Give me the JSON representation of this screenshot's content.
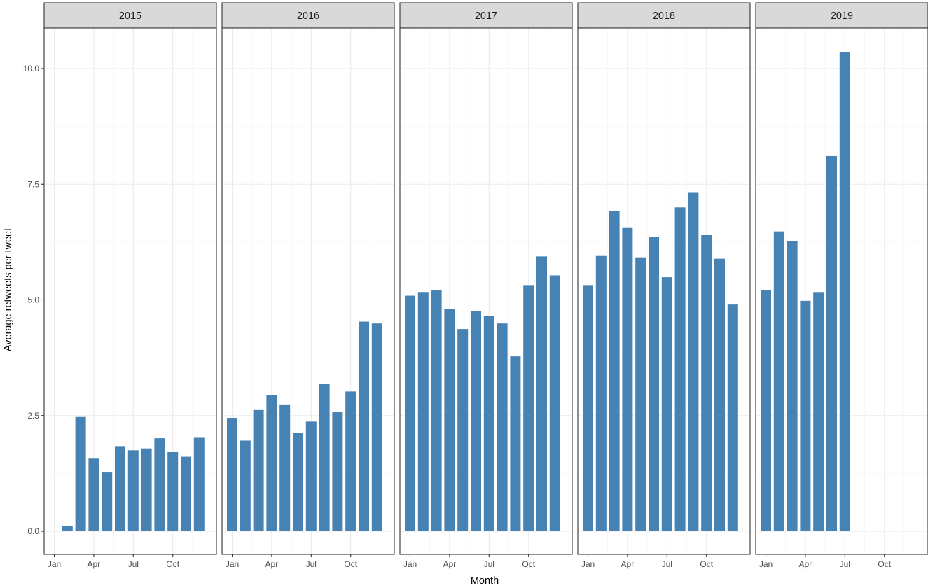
{
  "chart_data": {
    "type": "bar",
    "xlabel": "Month",
    "ylabel": "Average retweets per tweet",
    "ylim": [
      -0.6,
      10.9
    ],
    "y_ticks": [
      0.0,
      2.5,
      5.0,
      7.5,
      10.0
    ],
    "y_tick_labels": [
      "0.0",
      "2.5",
      "5.0",
      "7.5",
      "10.0"
    ],
    "x_tick_months": [
      1,
      4,
      7,
      10
    ],
    "x_tick_labels": [
      "Jan",
      "Apr",
      "Jul",
      "Oct"
    ],
    "grid": true,
    "bar_color": "#4682b4",
    "facets": [
      {
        "label": "2015",
        "months": [
          2,
          3,
          4,
          5,
          6,
          7,
          8,
          9,
          10,
          11,
          12
        ],
        "values": [
          0.12,
          2.47,
          1.57,
          1.27,
          1.84,
          1.75,
          1.79,
          2.01,
          1.71,
          1.61,
          2.02
        ]
      },
      {
        "label": "2016",
        "months": [
          1,
          2,
          3,
          4,
          5,
          6,
          7,
          8,
          9,
          10,
          11,
          12
        ],
        "values": [
          2.45,
          1.96,
          2.62,
          2.94,
          2.74,
          2.13,
          2.37,
          3.18,
          2.58,
          3.02,
          4.53,
          4.49
        ]
      },
      {
        "label": "2017",
        "months": [
          1,
          2,
          3,
          4,
          5,
          6,
          7,
          8,
          9,
          10,
          11,
          12
        ],
        "values": [
          5.09,
          5.17,
          5.21,
          4.81,
          4.37,
          4.76,
          4.65,
          4.49,
          3.78,
          5.32,
          5.94,
          5.53
        ]
      },
      {
        "label": "2018",
        "months": [
          1,
          2,
          3,
          4,
          5,
          6,
          7,
          8,
          9,
          10,
          11,
          12
        ],
        "values": [
          5.32,
          5.95,
          6.92,
          6.57,
          5.92,
          6.36,
          5.49,
          7.0,
          7.33,
          6.4,
          5.89,
          4.9
        ]
      },
      {
        "label": "2019",
        "months": [
          1,
          2,
          3,
          4,
          5,
          6,
          7
        ],
        "values": [
          5.21,
          6.48,
          6.27,
          4.98,
          5.17,
          8.11,
          10.36
        ]
      }
    ]
  }
}
